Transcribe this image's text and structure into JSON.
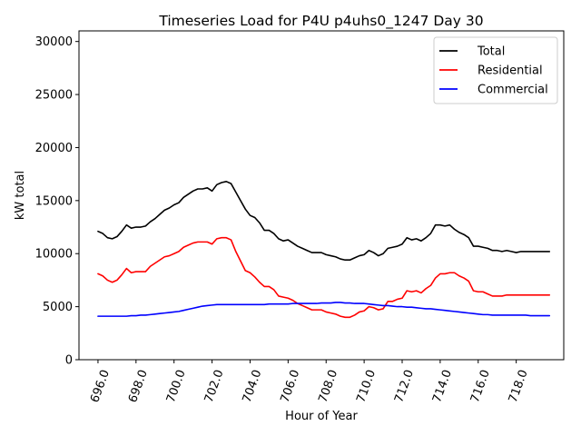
{
  "chart_data": {
    "type": "line",
    "title": "Timeseries Load for P4U p4uhs0_1247  Day 30",
    "xlabel": "Hour of Year",
    "ylabel": "kW total",
    "xlim": [
      695.0,
      720.5
    ],
    "ylim": [
      0,
      31000
    ],
    "xticks": [
      696,
      698,
      700,
      702,
      704,
      706,
      708,
      710,
      712,
      714,
      716,
      718
    ],
    "xtick_labels": [
      "696.0",
      "698.0",
      "700.0",
      "702.0",
      "704.0",
      "706.0",
      "708.0",
      "710.0",
      "712.0",
      "714.0",
      "716.0",
      "718.0"
    ],
    "yticks": [
      0,
      5000,
      10000,
      15000,
      20000,
      25000,
      30000
    ],
    "ytick_labels": [
      "0",
      "5000",
      "10000",
      "15000",
      "20000",
      "25000",
      "30000"
    ],
    "legend_position": "top-right",
    "x": [
      696.0,
      696.25,
      696.5,
      696.75,
      697.0,
      697.25,
      697.5,
      697.75,
      698.0,
      698.25,
      698.5,
      698.75,
      699.0,
      699.25,
      699.5,
      699.75,
      700.0,
      700.25,
      700.5,
      700.75,
      701.0,
      701.25,
      701.5,
      701.75,
      702.0,
      702.25,
      702.5,
      702.75,
      703.0,
      703.25,
      703.5,
      703.75,
      704.0,
      704.25,
      704.5,
      704.75,
      705.0,
      705.25,
      705.5,
      705.75,
      706.0,
      706.25,
      706.5,
      706.75,
      707.0,
      707.25,
      707.5,
      707.75,
      708.0,
      708.25,
      708.5,
      708.75,
      709.0,
      709.25,
      709.5,
      709.75,
      710.0,
      710.25,
      710.5,
      710.75,
      711.0,
      711.25,
      711.5,
      711.75,
      712.0,
      712.25,
      712.5,
      712.75,
      713.0,
      713.25,
      713.5,
      713.75,
      714.0,
      714.25,
      714.5,
      714.75,
      715.0,
      715.25,
      715.5,
      715.75,
      716.0,
      716.25,
      716.5,
      716.75,
      717.0,
      717.25,
      717.5,
      717.75,
      718.0,
      718.25,
      718.5,
      718.75,
      719.0,
      719.25,
      719.5,
      719.75
    ],
    "series": [
      {
        "name": "Total",
        "color": "#000000",
        "values": [
          12100,
          11900,
          11500,
          11400,
          11600,
          12100,
          12700,
          12400,
          12500,
          12500,
          12600,
          13000,
          13300,
          13700,
          14100,
          14300,
          14600,
          14800,
          15300,
          15600,
          15900,
          16100,
          16100,
          16200,
          15900,
          16500,
          16700,
          16800,
          16600,
          15800,
          15000,
          14200,
          13600,
          13400,
          12900,
          12200,
          12200,
          11900,
          11400,
          11200,
          11300,
          11000,
          10700,
          10500,
          10300,
          10100,
          10100,
          10100,
          9900,
          9800,
          9700,
          9500,
          9400,
          9400,
          9600,
          9800,
          9900,
          10300,
          10100,
          9800,
          10000,
          10500,
          10600,
          10700,
          10900,
          11500,
          11300,
          11400,
          11200,
          11500,
          11900,
          12700,
          12700,
          12600,
          12700,
          12300,
          12000,
          11800,
          11500,
          10700,
          10700,
          10600,
          10500,
          10300,
          10300,
          10200,
          10300,
          10200,
          10100,
          10200,
          10200,
          10200,
          10200,
          10200,
          10200,
          10200
        ]
      },
      {
        "name": "Residential",
        "color": "#ff0000",
        "values": [
          8100,
          7900,
          7500,
          7300,
          7500,
          8000,
          8600,
          8200,
          8300,
          8300,
          8300,
          8800,
          9100,
          9400,
          9700,
          9800,
          10000,
          10200,
          10600,
          10800,
          11000,
          11100,
          11100,
          11100,
          10900,
          11400,
          11500,
          11500,
          11300,
          10200,
          9300,
          8400,
          8200,
          7800,
          7300,
          6900,
          6900,
          6600,
          6000,
          5900,
          5800,
          5600,
          5300,
          5100,
          4900,
          4700,
          4700,
          4700,
          4500,
          4400,
          4300,
          4100,
          4000,
          4000,
          4200,
          4500,
          4600,
          5000,
          4900,
          4700,
          4800,
          5500,
          5500,
          5700,
          5800,
          6500,
          6400,
          6500,
          6300,
          6700,
          7000,
          7700,
          8100,
          8100,
          8200,
          8200,
          7900,
          7700,
          7400,
          6500,
          6400,
          6400,
          6200,
          6000,
          6000,
          6000,
          6100,
          6100,
          6100,
          6100,
          6100,
          6100,
          6100,
          6100,
          6100,
          6100
        ]
      },
      {
        "name": "Commercial",
        "color": "#0000ff",
        "values": [
          4100,
          4100,
          4100,
          4100,
          4100,
          4100,
          4100,
          4150,
          4150,
          4200,
          4200,
          4250,
          4300,
          4350,
          4400,
          4450,
          4500,
          4550,
          4650,
          4750,
          4850,
          4950,
          5050,
          5100,
          5150,
          5200,
          5200,
          5200,
          5200,
          5200,
          5200,
          5200,
          5200,
          5200,
          5200,
          5200,
          5250,
          5250,
          5250,
          5250,
          5250,
          5300,
          5300,
          5300,
          5300,
          5300,
          5300,
          5350,
          5350,
          5350,
          5400,
          5400,
          5350,
          5350,
          5300,
          5300,
          5300,
          5250,
          5200,
          5150,
          5100,
          5100,
          5050,
          5000,
          5000,
          4950,
          4950,
          4900,
          4850,
          4800,
          4800,
          4750,
          4700,
          4650,
          4600,
          4550,
          4500,
          4450,
          4400,
          4350,
          4300,
          4250,
          4250,
          4200,
          4200,
          4200,
          4200,
          4200,
          4200,
          4200,
          4200,
          4150,
          4150,
          4150,
          4150,
          4150
        ]
      }
    ]
  }
}
